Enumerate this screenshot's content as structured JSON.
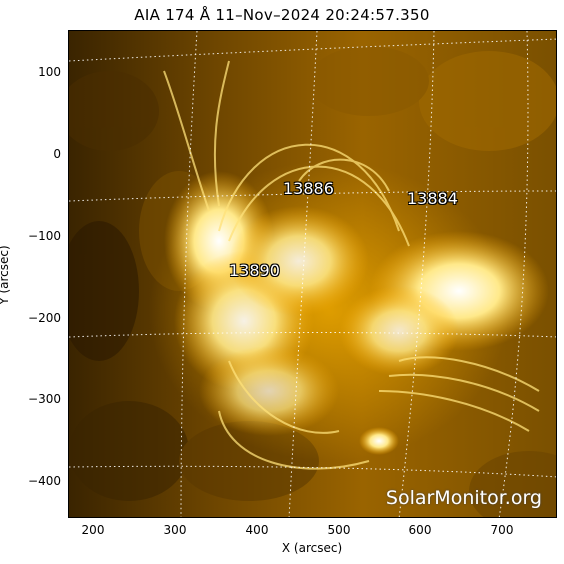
{
  "title": "AIA 174 Å 11–Nov–2024 20:24:57.350",
  "xlabel": "X (arcsec)",
  "ylabel": "Y (arcsec)",
  "x_ticks": [
    "200",
    "300",
    "400",
    "500",
    "600",
    "700"
  ],
  "y_ticks": [
    "100",
    "0",
    "−100",
    "−200",
    "−300",
    "−400"
  ],
  "regions": [
    "13886",
    "13884",
    "13890"
  ],
  "watermark": "SolarMonitor.org",
  "colors": {
    "dark": "#2b1a00",
    "mid": "#b87a00",
    "bright": "#ffd34a",
    "white": "#fffbe8"
  }
}
